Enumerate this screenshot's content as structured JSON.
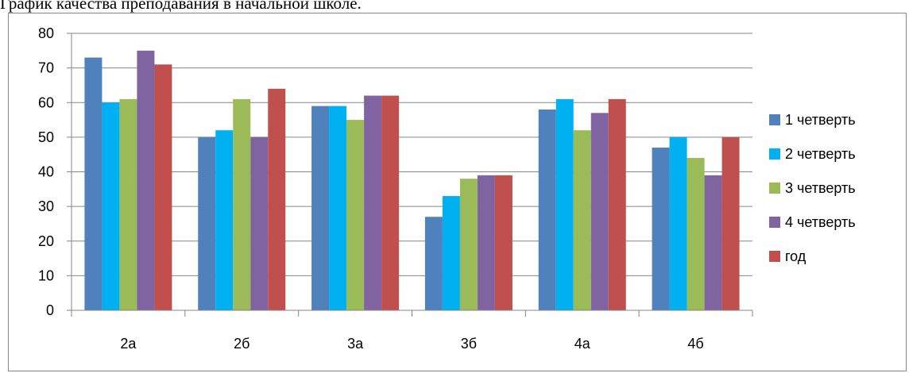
{
  "page": {
    "title": "График качества преподавания в начальной школе."
  },
  "chart_data": {
    "type": "bar",
    "categories": [
      "2а",
      "2б",
      "3а",
      "3б",
      "4а",
      "4б"
    ],
    "series": [
      {
        "name": "1 четверть",
        "color": "#4F81BD",
        "values": [
          73,
          50,
          59,
          27,
          58,
          47
        ]
      },
      {
        "name": "2 четверть",
        "color": "#00B0F0",
        "values": [
          60,
          52,
          59,
          33,
          61,
          50
        ]
      },
      {
        "name": "3 четверть",
        "color": "#9BBB59",
        "values": [
          61,
          61,
          55,
          38,
          52,
          44
        ]
      },
      {
        "name": "4 четверть",
        "color": "#8064A2",
        "values": [
          75,
          50,
          62,
          39,
          57,
          39
        ]
      },
      {
        "name": "год",
        "color": "#C0504D",
        "values": [
          71,
          64,
          62,
          39,
          61,
          50
        ]
      }
    ],
    "yticks": [
      "0",
      "10",
      "20",
      "30",
      "40",
      "50",
      "60",
      "70",
      "80"
    ],
    "ylim": [
      0,
      80
    ],
    "grid": true,
    "legend_position": "right",
    "title": "",
    "xlabel": "",
    "ylabel": ""
  }
}
